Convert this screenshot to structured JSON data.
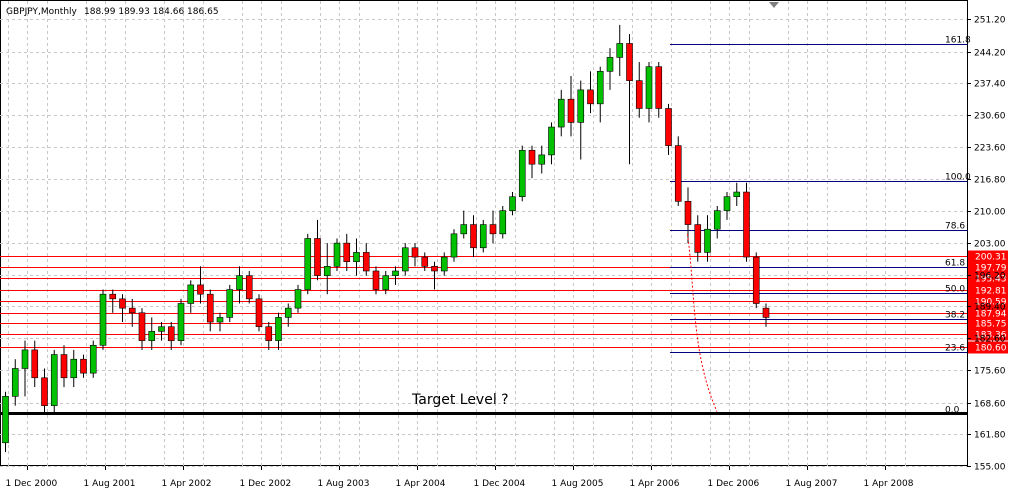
{
  "header": {
    "symbol": "GBPJPY,Monthly",
    "ohlc": "188.99 189.93 184.66 186.65"
  },
  "annotation": "Target Level ?",
  "colors": {
    "bull": "#00c000",
    "bear": "#ff0000",
    "grid": "#c8c8c8",
    "fib": "#000080",
    "support": "#ff0000",
    "target": "#000000"
  },
  "chart_data": {
    "type": "candlestick",
    "grid": true,
    "ylim": [
      155.0,
      254.5
    ],
    "y_ticks": [
      "251.20",
      "244.20",
      "237.40",
      "230.60",
      "223.60",
      "216.80",
      "210.00",
      "203.00",
      "196.20",
      "189.40",
      "182.60",
      "175.60",
      "168.60",
      "161.80",
      "155.00"
    ],
    "x_ticks": [
      "1 Dec 2000",
      "1 Aug 2001",
      "1 Apr 2002",
      "1 Dec 2002",
      "1 Aug 2003",
      "1 Apr 2004",
      "1 Dec 2004",
      "1 Aug 2005",
      "1 Apr 2006",
      "1 Dec 2006",
      "1 Aug 2007",
      "1 Apr 2008"
    ],
    "candles": [
      [
        160,
        171,
        158,
        170
      ],
      [
        170,
        178,
        168,
        176
      ],
      [
        176,
        182,
        170,
        180
      ],
      [
        180,
        182,
        172,
        174
      ],
      [
        174,
        176,
        166,
        168
      ],
      [
        168,
        180,
        166,
        179
      ],
      [
        179,
        181,
        172,
        174
      ],
      [
        174,
        180,
        172,
        178
      ],
      [
        178,
        179,
        174,
        175
      ],
      [
        175,
        182,
        174,
        181
      ],
      [
        181,
        193,
        180,
        192
      ],
      [
        192,
        193,
        188,
        191
      ],
      [
        191,
        192,
        186,
        189
      ],
      [
        189,
        191,
        185,
        188
      ],
      [
        188,
        189,
        180,
        182
      ],
      [
        182,
        187,
        180,
        184
      ],
      [
        184,
        186,
        182,
        185
      ],
      [
        185,
        186,
        180,
        182
      ],
      [
        182,
        191,
        181,
        190
      ],
      [
        190,
        195,
        188,
        194
      ],
      [
        194,
        198,
        190,
        192
      ],
      [
        192,
        193,
        184,
        186
      ],
      [
        186,
        188,
        184,
        187
      ],
      [
        187,
        194,
        186,
        193
      ],
      [
        193,
        198,
        190,
        196
      ],
      [
        196,
        197,
        190,
        191
      ],
      [
        191,
        192,
        184,
        185
      ],
      [
        185,
        186,
        180,
        182
      ],
      [
        182,
        188,
        180,
        187
      ],
      [
        187,
        190,
        185,
        189
      ],
      [
        189,
        194,
        188,
        193
      ],
      [
        193,
        205,
        192,
        204
      ],
      [
        204,
        208,
        195,
        196
      ],
      [
        196,
        203,
        192,
        198
      ],
      [
        198,
        204,
        197,
        203
      ],
      [
        203,
        205,
        197,
        199
      ],
      [
        199,
        204,
        196,
        201
      ],
      [
        201,
        203,
        196,
        197
      ],
      [
        197,
        198,
        192,
        193
      ],
      [
        193,
        197,
        192,
        196
      ],
      [
        196,
        198,
        194,
        197
      ],
      [
        197,
        203,
        196,
        202
      ],
      [
        202,
        203,
        198,
        200
      ],
      [
        200,
        201,
        197,
        198
      ],
      [
        198,
        199,
        193,
        197
      ],
      [
        197,
        201,
        196,
        200
      ],
      [
        200,
        206,
        199,
        205
      ],
      [
        205,
        210,
        204,
        207
      ],
      [
        207,
        209,
        200,
        202
      ],
      [
        202,
        208,
        201,
        207
      ],
      [
        207,
        210,
        203,
        205
      ],
      [
        205,
        211,
        204,
        210
      ],
      [
        210,
        214,
        209,
        213
      ],
      [
        213,
        224,
        212,
        223
      ],
      [
        223,
        224,
        217,
        220
      ],
      [
        220,
        224,
        218,
        222
      ],
      [
        222,
        229,
        220,
        228
      ],
      [
        228,
        236,
        226,
        234
      ],
      [
        234,
        239,
        226,
        229
      ],
      [
        229,
        238,
        221,
        236
      ],
      [
        236,
        240,
        231,
        233
      ],
      [
        233,
        241,
        229,
        240
      ],
      [
        240,
        245,
        236,
        243
      ],
      [
        243,
        250,
        239,
        246
      ],
      [
        246,
        248,
        220,
        238
      ],
      [
        238,
        242,
        230,
        232
      ],
      [
        232,
        242,
        229,
        241
      ],
      [
        241,
        242,
        230,
        232
      ],
      [
        232,
        233,
        222,
        224
      ],
      [
        224,
        226,
        211,
        212
      ],
      [
        212,
        215,
        203,
        207
      ],
      [
        207,
        209,
        199,
        201
      ],
      [
        201,
        209,
        199,
        206
      ],
      [
        206,
        211,
        204,
        210
      ],
      [
        210,
        214,
        208,
        213
      ],
      [
        213,
        216,
        211,
        214
      ],
      [
        214,
        216,
        199,
        200
      ],
      [
        200,
        201,
        189,
        190
      ],
      [
        189,
        190,
        185,
        187
      ]
    ],
    "fib_levels": [
      {
        "label": "161.8",
        "value": 245.8
      },
      {
        "label": "100.0",
        "value": 216.3
      },
      {
        "label": "78.6",
        "value": 205.9
      },
      {
        "label": "61.8",
        "value": 197.9
      },
      {
        "label": "50.0",
        "value": 192.3
      },
      {
        "label": "38.2",
        "value": 186.6
      },
      {
        "label": "23.6",
        "value": 179.6
      },
      {
        "label": "0.0",
        "value": 166.3
      }
    ],
    "support_levels": [
      {
        "label": "200.31",
        "value": 200.31
      },
      {
        "label": "197.79",
        "value": 197.79
      },
      {
        "label": "195.43",
        "value": 195.43
      },
      {
        "label": "192.81",
        "value": 192.81
      },
      {
        "label": "190.59",
        "value": 190.59
      },
      {
        "label": "187.94",
        "value": 187.94
      },
      {
        "label": "185.75",
        "value": 185.75
      },
      {
        "label": "183.36",
        "value": 183.36
      },
      {
        "label": "180.60",
        "value": 180.6
      }
    ],
    "target_level": 166.3
  }
}
